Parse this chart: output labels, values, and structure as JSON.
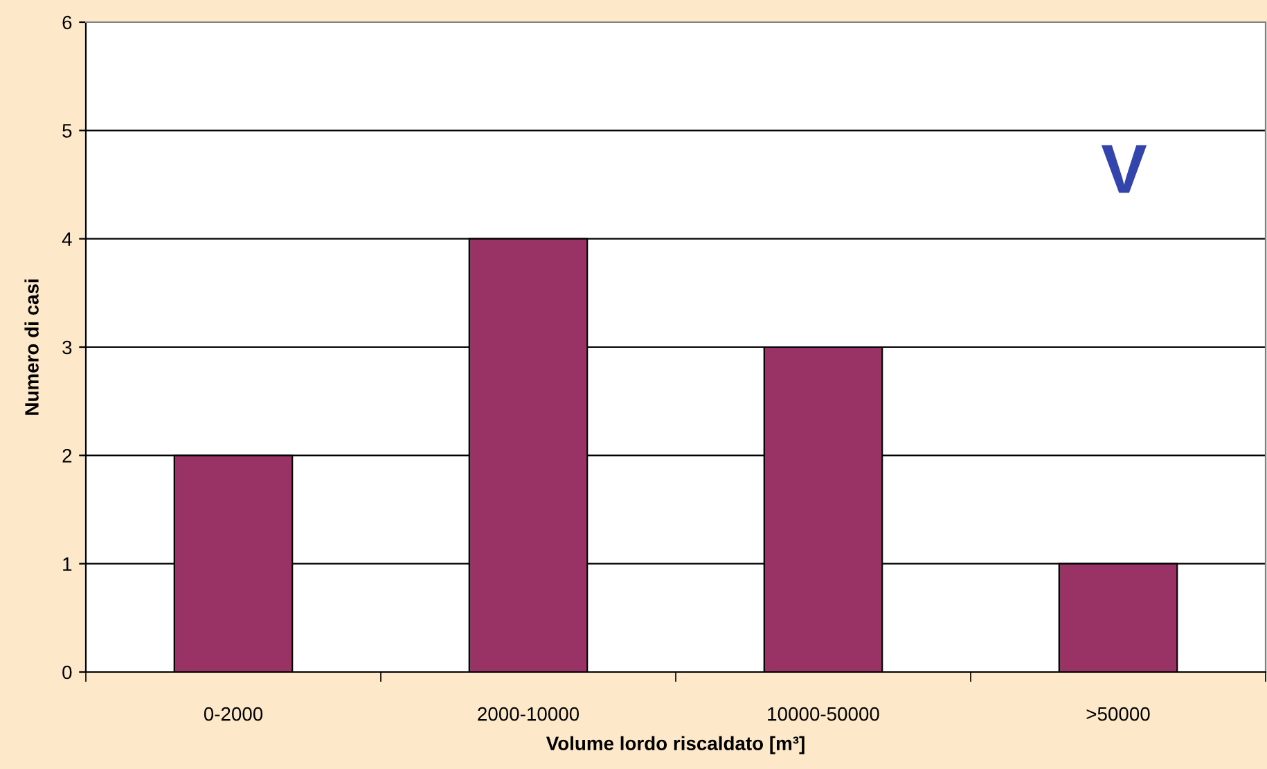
{
  "chart_data": {
    "type": "bar",
    "xlabel": "Volume lordo riscaldato [m³]",
    "ylabel": "Numero di casi",
    "categories": [
      "0-2000",
      "2000-10000",
      "10000-50000",
      ">50000"
    ],
    "values": [
      2,
      4,
      3,
      1
    ],
    "color": "#993366",
    "ylim": [
      0,
      6
    ],
    "yticks": [
      0,
      1,
      2,
      3,
      4,
      5,
      6
    ],
    "grid": "y",
    "legend": false,
    "annotations": [
      "V"
    ]
  }
}
